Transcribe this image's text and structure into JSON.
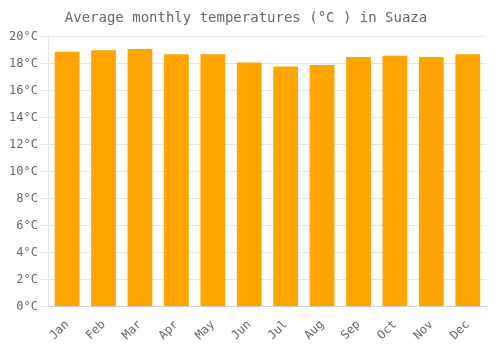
{
  "chart_data": {
    "type": "bar",
    "title": "Average monthly temperatures (°C ) in Suaza",
    "categories": [
      "Jan",
      "Feb",
      "Mar",
      "Apr",
      "May",
      "Jun",
      "Jul",
      "Aug",
      "Sep",
      "Oct",
      "Nov",
      "Dec"
    ],
    "values": [
      18.9,
      19.0,
      19.1,
      18.7,
      18.7,
      18.1,
      17.8,
      17.9,
      18.5,
      18.6,
      18.5,
      18.7
    ],
    "color": "#FFA500",
    "ylim": [
      0,
      20
    ],
    "yticks": [
      {
        "value": 0,
        "label": "0°C"
      },
      {
        "value": 2,
        "label": "2°C"
      },
      {
        "value": 4,
        "label": "4°C"
      },
      {
        "value": 6,
        "label": "6°C"
      },
      {
        "value": 8,
        "label": "8°C"
      },
      {
        "value": 10,
        "label": "10°C"
      },
      {
        "value": 12,
        "label": "12°C"
      },
      {
        "value": 14,
        "label": "14°C"
      },
      {
        "value": 16,
        "label": "16°C"
      },
      {
        "value": 18,
        "label": "18°C"
      },
      {
        "value": 20,
        "label": "20°C"
      }
    ],
    "grid": true
  }
}
